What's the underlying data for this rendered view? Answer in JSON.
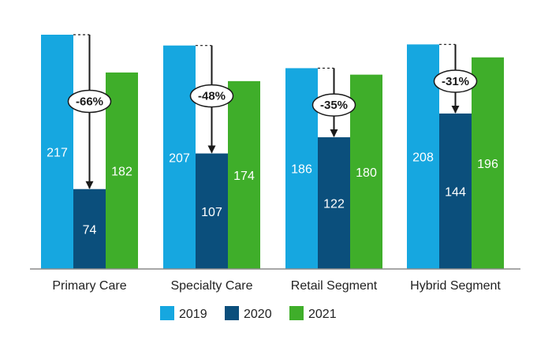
{
  "chart_data": {
    "type": "bar",
    "categories": [
      "Primary Care",
      "Specialty Care",
      "Retail Segment",
      "Hybrid Segment"
    ],
    "series": [
      {
        "name": "2019",
        "values": [
          217,
          207,
          186,
          208
        ],
        "color": "#16a7e0"
      },
      {
        "name": "2020",
        "values": [
          74,
          107,
          122,
          144
        ],
        "color": "#0b4f7c"
      },
      {
        "name": "2021",
        "values": [
          182,
          174,
          180,
          196
        ],
        "color": "#3fae2a"
      }
    ],
    "annotations": [
      "-66%",
      "-48%",
      "-35%",
      "-31%"
    ],
    "ylim": [
      0,
      217
    ],
    "grid": false,
    "legend": "bottom"
  }
}
